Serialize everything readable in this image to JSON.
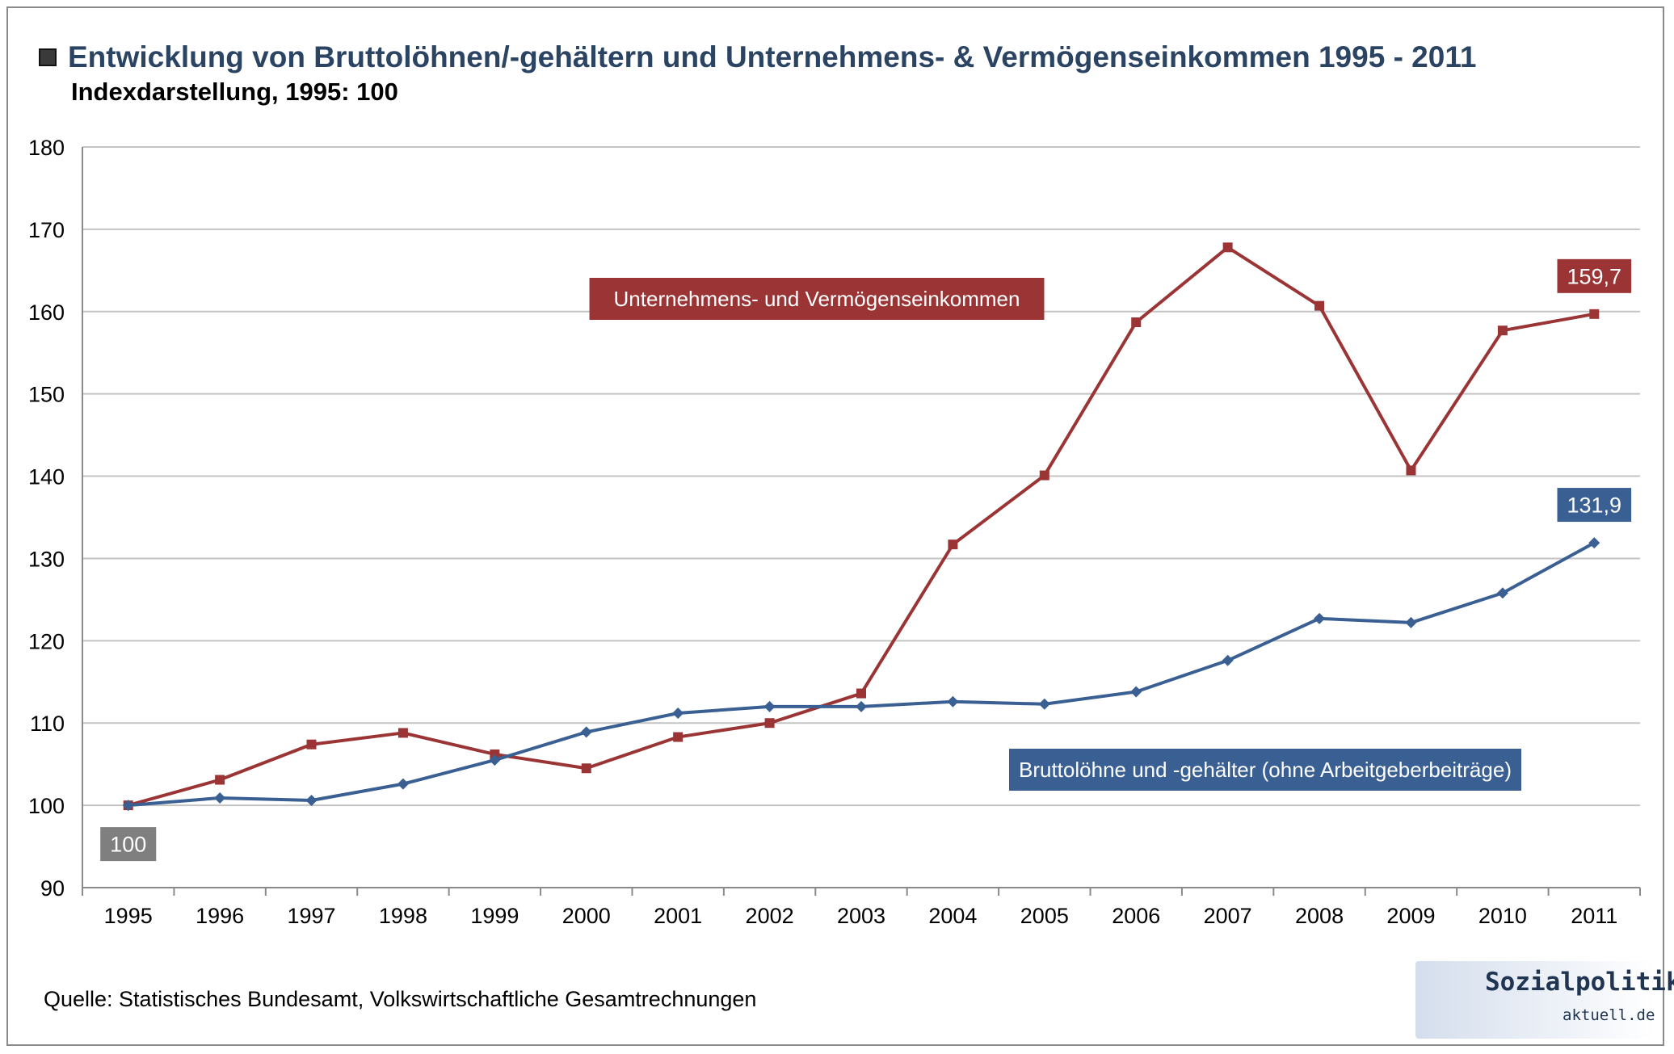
{
  "header": {
    "title": "Entwicklung von Bruttolöhnen/-gehältern und Unternehmens- & Vermögenseinkommen 1995 - 2011",
    "subtitle": "Indexdarstellung, 1995: 100"
  },
  "footer": {
    "source": "Quelle: Statistisches Bundesamt, Volkswirtschaftliche Gesamtrechnungen",
    "logo_main": "Sozialpolitik-",
    "logo_sub": "aktuell.de"
  },
  "chart_data": {
    "type": "line",
    "title": "Entwicklung von Bruttolöhnen/-gehältern und Unternehmens- & Vermögenseinkommen 1995 - 2011",
    "subtitle": "Indexdarstellung, 1995: 100",
    "xlabel": "",
    "ylabel": "",
    "x": [
      "1995",
      "1996",
      "1997",
      "1998",
      "1999",
      "2000",
      "2001",
      "2002",
      "2003",
      "2004",
      "2005",
      "2006",
      "2007",
      "2008",
      "2009",
      "2010",
      "2011"
    ],
    "ylim": [
      90,
      180
    ],
    "yticks": [
      90,
      100,
      110,
      120,
      130,
      140,
      150,
      160,
      170,
      180
    ],
    "grid": true,
    "series": [
      {
        "name": "Unternehmens- und Vermögenseinkommen",
        "color": "#9b3535",
        "marker": "square",
        "values": [
          100,
          103.1,
          107.4,
          108.8,
          106.2,
          104.5,
          108.3,
          110.0,
          113.6,
          131.7,
          140.1,
          158.7,
          167.8,
          160.7,
          140.7,
          157.7,
          159.7
        ]
      },
      {
        "name": "Bruttolöhne und -gehälter (ohne Arbeitgeberbeiträge)",
        "color": "#3a5f93",
        "marker": "diamond",
        "values": [
          100,
          100.9,
          100.6,
          102.6,
          105.5,
          108.9,
          111.2,
          112.0,
          112.0,
          112.6,
          112.3,
          113.8,
          117.6,
          122.7,
          122.2,
          125.8,
          131.9
        ]
      }
    ],
    "annotations": [
      {
        "text": "159,7",
        "series": 0,
        "x": "2011",
        "y": 159.7,
        "color": "#9b3535"
      },
      {
        "text": "131,9",
        "series": 1,
        "x": "2011",
        "y": 131.9,
        "color": "#3a5f93"
      },
      {
        "text": "100",
        "x": "1995",
        "y": 100,
        "color": "#7f7f7f"
      }
    ]
  }
}
